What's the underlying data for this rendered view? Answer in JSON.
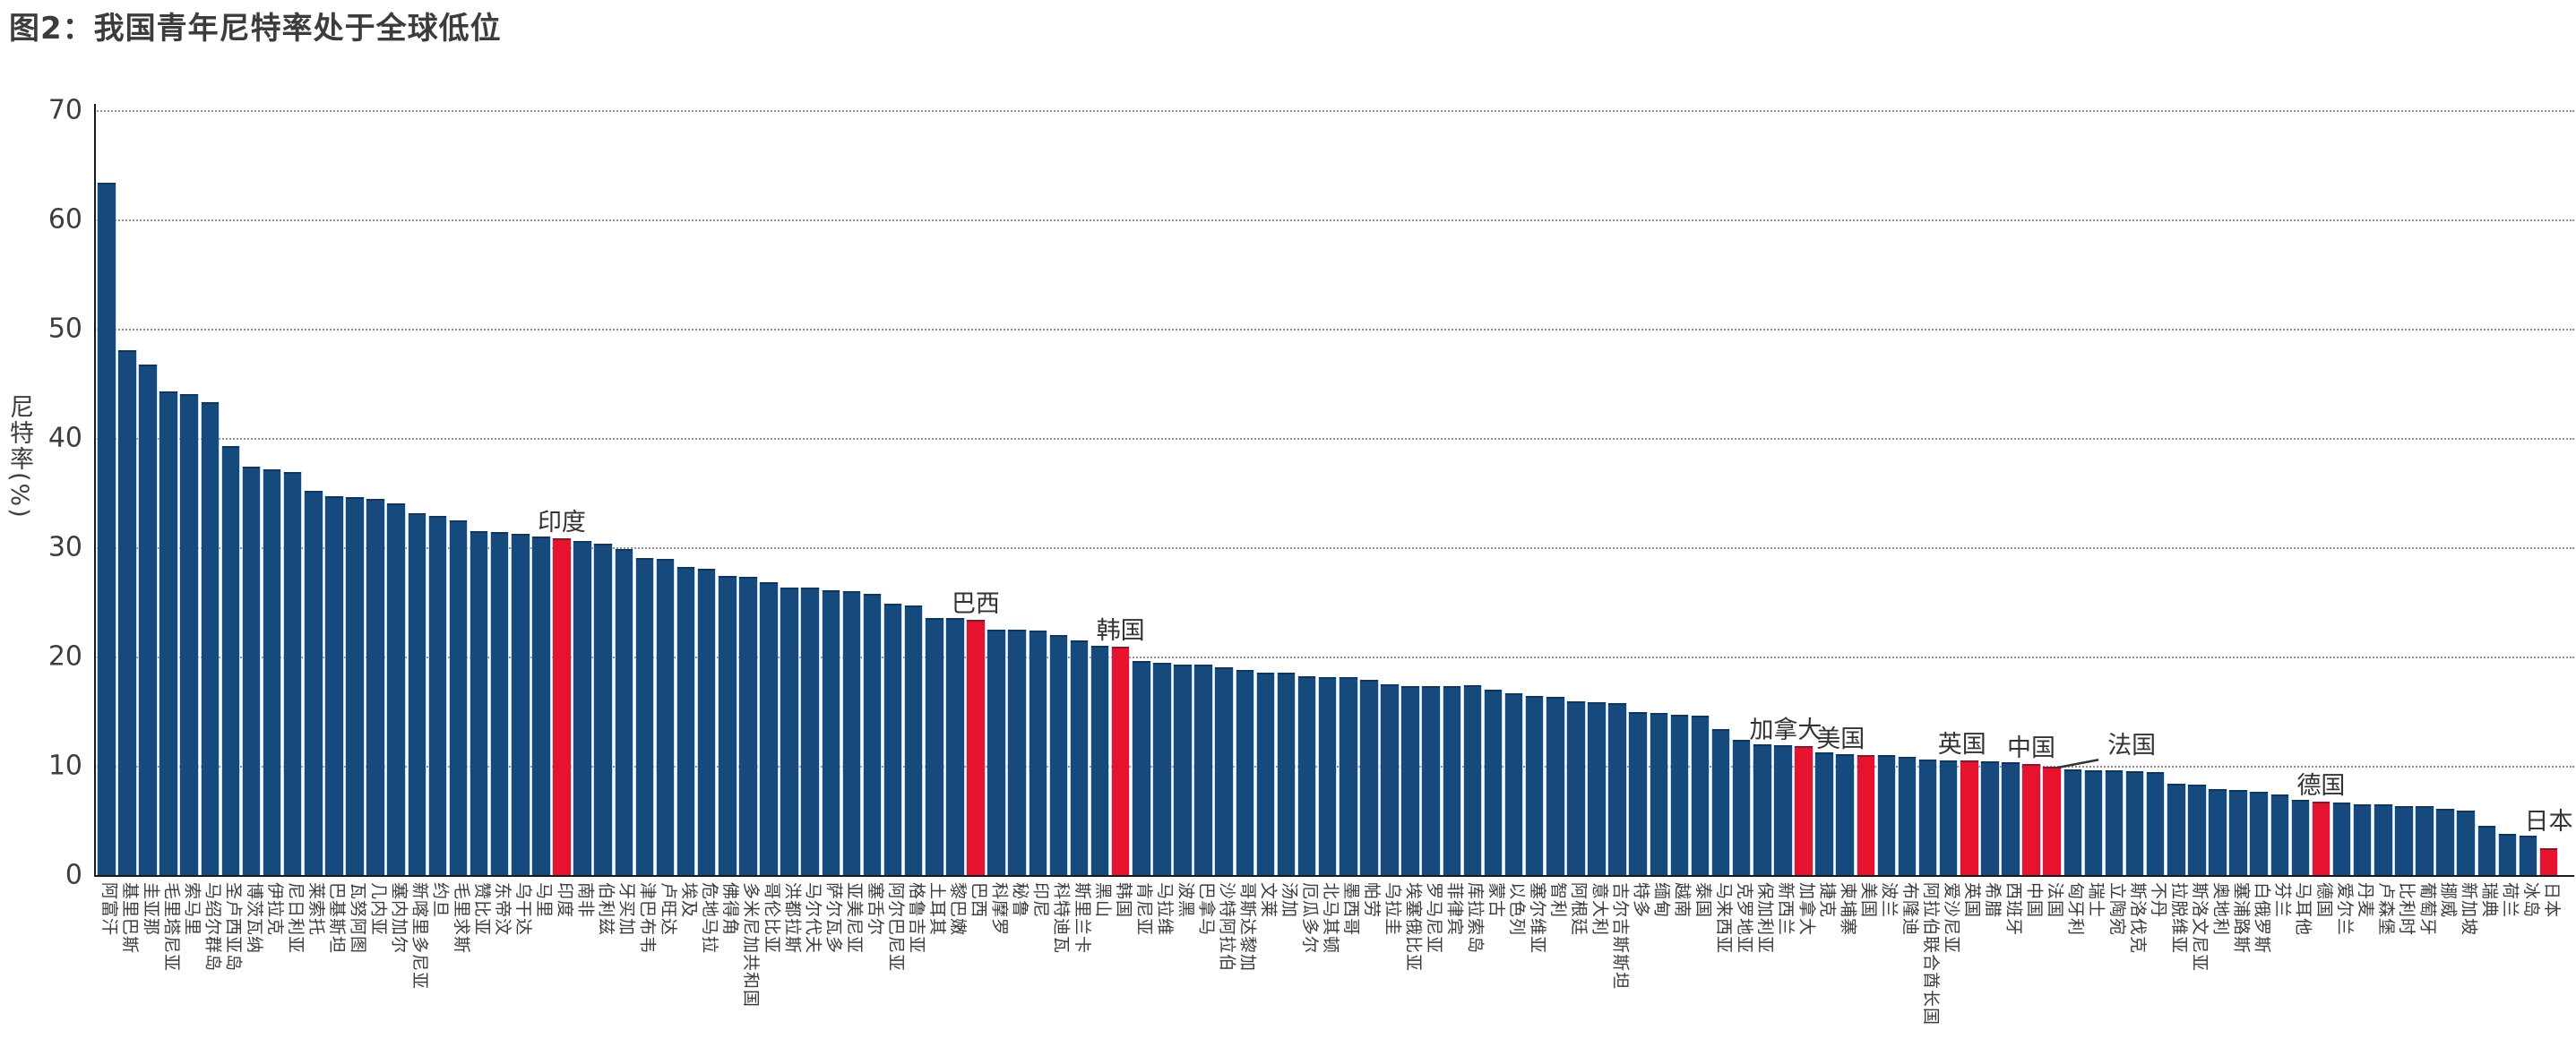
{
  "title": "图2：我国青年尼特率处于全球低位",
  "chart_data": {
    "type": "bar",
    "title": "图2：我国青年尼特率处于全球低位",
    "xlabel": "",
    "ylabel": "尼特率（%）",
    "ylim": [
      0,
      70
    ],
    "yticks": [
      0,
      10,
      20,
      30,
      40,
      50,
      60,
      70
    ],
    "grid": "horizontal-dotted",
    "legend": "none",
    "bar_color": "#164a7d",
    "highlight_color": "#e5132d",
    "categories": [
      "阿富汗",
      "基里巴斯",
      "圭亚那",
      "毛里塔尼亚",
      "索马里",
      "马绍尔群岛",
      "圣卢西亚岛",
      "博茨瓦纳",
      "伊拉克",
      "尼日利亚",
      "莱索托",
      "巴基斯坦",
      "瓦努阿图",
      "几内亚",
      "塞内加尔",
      "新喀里多尼亚",
      "约旦",
      "毛里求斯",
      "赞比亚",
      "东帝汶",
      "乌干达",
      "马里",
      "印度",
      "南非",
      "伯利兹",
      "牙买加",
      "津巴布韦",
      "卢旺达",
      "埃及",
      "危地马拉",
      "佛得角",
      "多米尼加共和国",
      "哥伦比亚",
      "洪都拉斯",
      "马尔代夫",
      "萨尔瓦多",
      "亚美尼亚",
      "塞舌尔",
      "阿尔巴尼亚",
      "格鲁吉亚",
      "土耳其",
      "黎巴嫩",
      "巴西",
      "科摩罗",
      "秘鲁",
      "印尼",
      "科特迪瓦",
      "斯里兰卡",
      "黑山",
      "韩国",
      "肯尼亚",
      "马拉维",
      "波黑",
      "巴拿马",
      "沙特阿拉伯",
      "哥斯达黎加",
      "文莱",
      "汤加",
      "厄瓜多尔",
      "北马其顿",
      "墨西哥",
      "帕劳",
      "乌拉圭",
      "埃塞俄比亚",
      "罗马尼亚",
      "菲律宾",
      "库拉索岛",
      "蒙古",
      "以色列",
      "塞尔维亚",
      "智利",
      "阿根廷",
      "意大利",
      "吉尔吉斯斯坦",
      "特多",
      "缅甸",
      "越南",
      "泰国",
      "马来西亚",
      "克罗地亚",
      "保加利亚",
      "新西兰",
      "加拿大",
      "捷克",
      "柬埔寨",
      "美国",
      "波兰",
      "布隆迪",
      "阿拉伯联合酋长国",
      "爱沙尼亚",
      "英国",
      "希腊",
      "西班牙",
      "中国",
      "法国",
      "匈牙利",
      "瑞士",
      "立陶宛",
      "斯洛伐克",
      "不丹",
      "拉脱维亚",
      "斯洛文尼亚",
      "奥地利",
      "塞浦路斯",
      "白俄罗斯",
      "芬兰",
      "马耳他",
      "德国",
      "爱尔兰",
      "丹麦",
      "卢森堡",
      "比利时",
      "葡萄牙",
      "挪威",
      "新加坡",
      "瑞典",
      "荷兰",
      "冰岛",
      "日本"
    ],
    "values": [
      63.4,
      48,
      46.7,
      44.3,
      44,
      43.3,
      39.3,
      37.4,
      37.1,
      36.9,
      35.2,
      34.7,
      34.6,
      34.4,
      34,
      33.1,
      32.9,
      32.5,
      31.5,
      31.4,
      31.2,
      31,
      30.8,
      30.6,
      30.3,
      29.8,
      29,
      28.9,
      28.2,
      28,
      27.4,
      27.3,
      26.8,
      26.3,
      26.3,
      26.1,
      26,
      25.7,
      24.8,
      24.7,
      23.5,
      23.5,
      23.4,
      22.5,
      22.5,
      22.4,
      22,
      21.5,
      21,
      20.9,
      19.6,
      19.4,
      19.3,
      19.3,
      19,
      18.8,
      18.5,
      18.5,
      18.2,
      18.1,
      18.1,
      17.9,
      17.5,
      17.3,
      17.3,
      17.3,
      17.4,
      17,
      16.6,
      16.4,
      16.3,
      15.9,
      15.8,
      15.7,
      14.9,
      14.8,
      14.7,
      14.6,
      13.4,
      12.4,
      12,
      11.9,
      11.8,
      11.2,
      11.1,
      11,
      11,
      10.8,
      10.6,
      10.5,
      10.5,
      10.4,
      10.3,
      10.2,
      9.9,
      9.7,
      9.6,
      9.6,
      9.5,
      9.4,
      8.4,
      8.3,
      7.9,
      7.8,
      7.6,
      7.4,
      6.9,
      6.7,
      6.6,
      6.5,
      6.5,
      6.3,
      6.3,
      6.1,
      5.9,
      4.5,
      3.8,
      3.6,
      2.5
    ],
    "highlighted": [
      "印度",
      "巴西",
      "韩国",
      "加拿大",
      "美国",
      "英国",
      "中国",
      "法国",
      "德国",
      "日本"
    ],
    "annotations": [
      {
        "label": "印度",
        "country": "印度"
      },
      {
        "label": "巴西",
        "country": "巴西"
      },
      {
        "label": "韩国",
        "country": "韩国"
      },
      {
        "label": "加拿大",
        "country": "加拿大"
      },
      {
        "label": "美国",
        "country": "美国"
      },
      {
        "label": "英国",
        "country": "英国"
      },
      {
        "label": "中国",
        "country": "中国"
      },
      {
        "label": "法国",
        "country": "法国",
        "leader": true
      },
      {
        "label": "德国",
        "country": "德国"
      },
      {
        "label": "日本",
        "country": "日本"
      }
    ]
  }
}
